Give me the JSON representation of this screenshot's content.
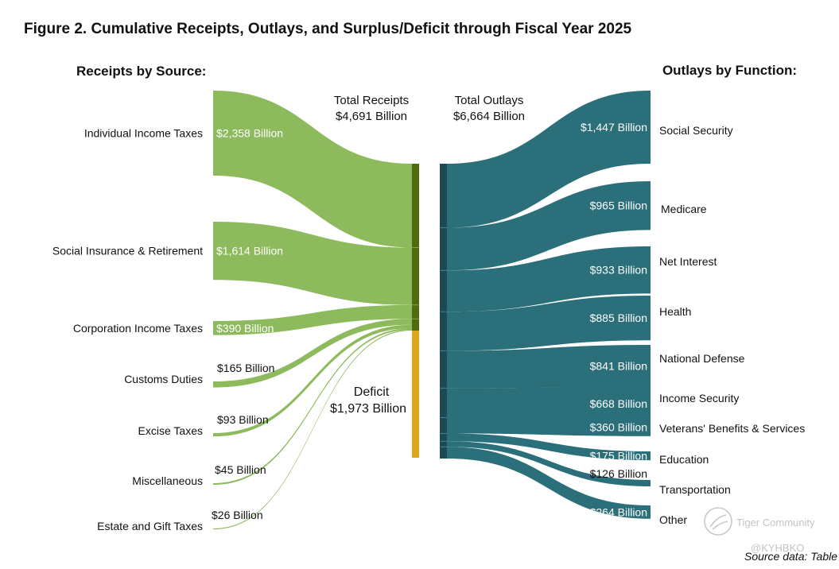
{
  "chart_data": {
    "type": "sankey",
    "title": "Figure 2. Cumulative Receipts, Outlays, and Surplus/Deficit through Fiscal Year 2025",
    "left_header": "Receipts by Source:",
    "right_header": "Outlays by Function:",
    "receipts_total": {
      "label": "Total Receipts",
      "value_label": "$4,691 Billion",
      "value": 4691
    },
    "outlays_total": {
      "label": "Total Outlays",
      "value_label": "$6,664 Billion",
      "value": 6664
    },
    "deficit": {
      "label": "Deficit",
      "value_label": "$1,973 Billion",
      "value": 1973
    },
    "receipts": [
      {
        "name": "Individual Income Taxes",
        "value": 2358,
        "value_label": "$2,358 Billion"
      },
      {
        "name": "Social Insurance & Retirement",
        "value": 1614,
        "value_label": "$1,614 Billion"
      },
      {
        "name": "Corporation Income Taxes",
        "value": 390,
        "value_label": "$390 Billion"
      },
      {
        "name": "Customs Duties",
        "value": 165,
        "value_label": "$165 Billion"
      },
      {
        "name": "Excise Taxes",
        "value": 93,
        "value_label": "$93 Billion"
      },
      {
        "name": "Miscellaneous",
        "value": 45,
        "value_label": "$45 Billion"
      },
      {
        "name": "Estate and Gift Taxes",
        "value": 26,
        "value_label": "$26 Billion"
      }
    ],
    "outlays": [
      {
        "name": "Social Security",
        "value": 1447,
        "value_label": "$1,447 Billion"
      },
      {
        "name": "Medicare",
        "value": 965,
        "value_label": "$965 Billion"
      },
      {
        "name": "Net Interest",
        "value": 933,
        "value_label": "$933 Billion"
      },
      {
        "name": "Health",
        "value": 885,
        "value_label": "$885 Billion"
      },
      {
        "name": "National Defense",
        "value": 841,
        "value_label": "$841 Billion"
      },
      {
        "name": "Income Security",
        "value": 668,
        "value_label": "$668 Billion"
      },
      {
        "name": "Veterans' Benefits & Services",
        "value": 360,
        "value_label": "$360 Billion"
      },
      {
        "name": "Education",
        "value": 175,
        "value_label": "$175 Billion"
      },
      {
        "name": "Transportation",
        "value": 126,
        "value_label": "$126 Billion"
      },
      {
        "name": "Other",
        "value": 264,
        "value_label": "$264 Billion"
      }
    ],
    "colors": {
      "receipts_flow": "#8cba5c",
      "receipts_bar": "#4d6b0f",
      "deficit_bar": "#dea61b",
      "outlays_flow": "#2b6f7b",
      "outlays_bar": "#1b4a52"
    },
    "source_note": "Source data: Table",
    "watermark": {
      "brand": "Tiger Community",
      "handle": "@KYHBKO"
    }
  }
}
